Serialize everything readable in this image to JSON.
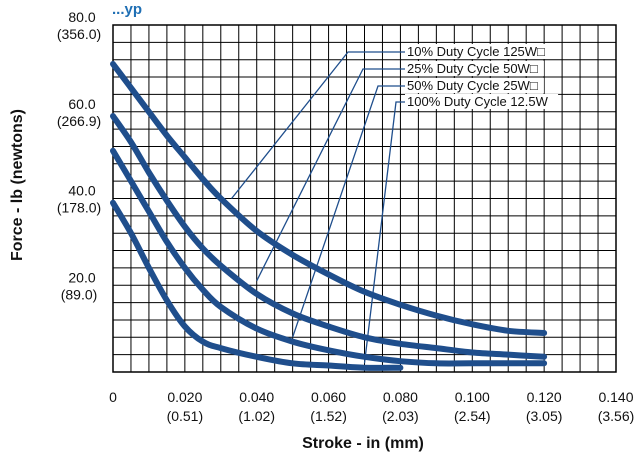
{
  "chart_data": {
    "type": "line",
    "title_fragment": "...yp",
    "xlabel": "Stroke - in (mm)",
    "ylabel": "Force - lb (newtons)",
    "xlim": [
      0,
      0.14
    ],
    "ylim": [
      0,
      80
    ],
    "grid": true,
    "grid_step": {
      "x": 0.005,
      "y": 4
    },
    "x_ticks": [
      {
        "value": 0,
        "label": "0",
        "sub": ""
      },
      {
        "value": 0.02,
        "label": "0.020",
        "sub": "(0.51)"
      },
      {
        "value": 0.04,
        "label": "0.040",
        "sub": "(1.02)"
      },
      {
        "value": 0.06,
        "label": "0.060",
        "sub": "(1.52)"
      },
      {
        "value": 0.08,
        "label": "0.080",
        "sub": "(2.03)"
      },
      {
        "value": 0.1,
        "label": "0.100",
        "sub": "(2.54)"
      },
      {
        "value": 0.12,
        "label": "0.120",
        "sub": "(3.05)"
      },
      {
        "value": 0.14,
        "label": "0.140",
        "sub": "(3.56)"
      }
    ],
    "y_ticks": [
      {
        "value": 20,
        "label": "20.0",
        "sub": "(89.0)"
      },
      {
        "value": 40,
        "label": "40.0",
        "sub": "(178.0)"
      },
      {
        "value": 60,
        "label": "60.0",
        "sub": "(266.9)"
      },
      {
        "value": 80,
        "label": "80.0",
        "sub": "(356.0)"
      }
    ],
    "line_color": "#1f4e8c",
    "title_color": "#1f6fb4",
    "legend_placement": "top-right",
    "series": [
      {
        "name": "10% Duty Cycle 125W□",
        "x": [
          0,
          0.005,
          0.01,
          0.015,
          0.02,
          0.025,
          0.03,
          0.04,
          0.05,
          0.06,
          0.07,
          0.08,
          0.09,
          0.1,
          0.11,
          0.12
        ],
        "y": [
          71,
          65.5,
          60,
          54.5,
          49.5,
          44.5,
          40,
          32.5,
          27,
          22.5,
          18.5,
          15.5,
          13,
          11,
          9.5,
          9
        ],
        "leader_anchor": [
          0.033,
          40
        ]
      },
      {
        "name": "25% Duty Cycle 50W□",
        "x": [
          0,
          0.005,
          0.01,
          0.015,
          0.02,
          0.025,
          0.03,
          0.04,
          0.05,
          0.06,
          0.07,
          0.08,
          0.09,
          0.1,
          0.11,
          0.12
        ],
        "y": [
          59,
          53,
          46,
          39.5,
          33.5,
          28.5,
          24.5,
          18,
          13.5,
          10.5,
          8,
          6.5,
          5.5,
          4.5,
          4,
          3.5
        ],
        "leader_anchor": [
          0.04,
          21
        ]
      },
      {
        "name": "50% Duty Cycle 25W□",
        "x": [
          0,
          0.005,
          0.01,
          0.015,
          0.02,
          0.025,
          0.03,
          0.04,
          0.05,
          0.06,
          0.07,
          0.08,
          0.09,
          0.1,
          0.11,
          0.12
        ],
        "y": [
          51,
          44,
          37,
          30,
          24,
          19,
          15,
          10,
          7,
          5,
          3.5,
          2.5,
          2,
          2,
          2,
          2
        ],
        "leader_anchor": [
          0.05,
          8
        ]
      },
      {
        "name": "100% Duty Cycle 12.5W",
        "x": [
          0,
          0.005,
          0.01,
          0.015,
          0.02,
          0.025,
          0.03,
          0.04,
          0.05,
          0.06,
          0.07,
          0.08
        ],
        "y": [
          39,
          32,
          24,
          16.5,
          10.5,
          7,
          5.5,
          3.5,
          2,
          1.5,
          1,
          1
        ],
        "leader_anchor": [
          0.07,
          2
        ]
      }
    ]
  }
}
